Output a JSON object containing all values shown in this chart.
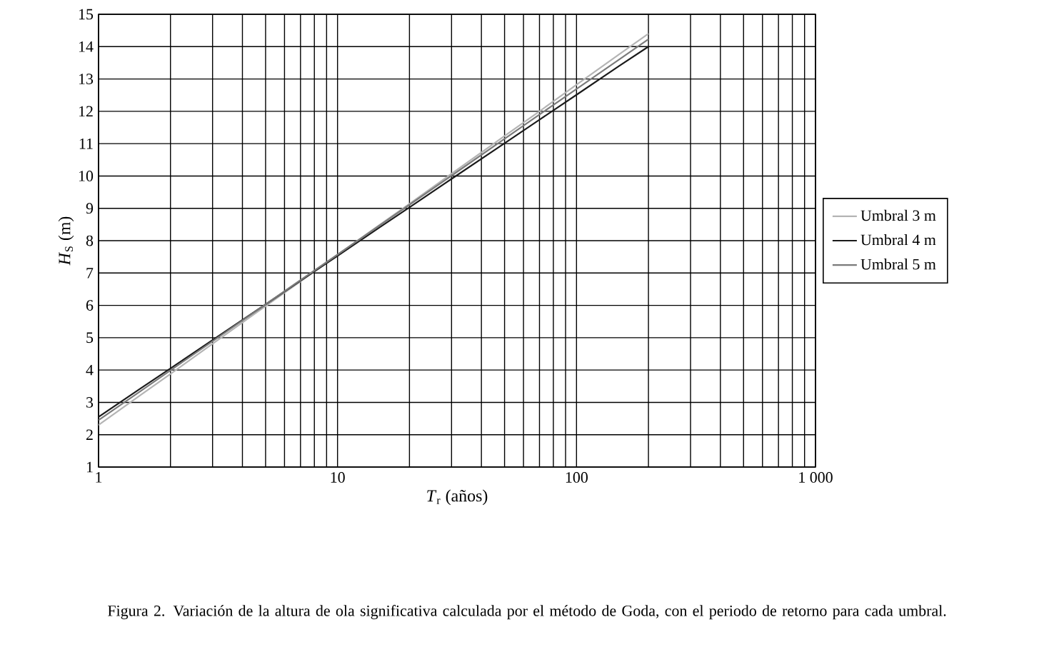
{
  "chart_data": {
    "type": "line",
    "xlabel": "*T*$_{r}$ (años)",
    "ylabel": "*H*$_{S}$ (m)",
    "x": [
      1,
      1.5,
      2,
      3,
      5,
      7,
      10,
      15,
      20,
      30,
      50,
      70,
      100,
      150,
      200
    ],
    "series": [
      {
        "name": "Umbral 3 m",
        "color": "#b4b4b4",
        "values": [
          2.3,
          3.23,
          3.88,
          4.81,
          5.98,
          6.74,
          7.56,
          8.49,
          9.14,
          10.07,
          11.24,
          12.0,
          12.82,
          13.75,
          14.4
        ]
      },
      {
        "name": "Umbral 4 m",
        "color": "#1a1a1a",
        "values": [
          2.55,
          3.43,
          4.05,
          4.93,
          6.03,
          6.76,
          7.53,
          8.41,
          9.03,
          9.91,
          11.01,
          11.74,
          12.51,
          13.39,
          14.0
        ]
      },
      {
        "name": "Umbral 5 m",
        "color": "#7a7a7a",
        "values": [
          2.45,
          3.35,
          3.99,
          4.89,
          6.03,
          6.78,
          7.57,
          8.47,
          9.11,
          10.01,
          11.15,
          11.9,
          12.69,
          13.59,
          14.23
        ]
      }
    ],
    "log": "x",
    "xlim": [
      1,
      1000
    ],
    "ylim": [
      1,
      15
    ],
    "xticks": [
      1,
      10,
      100,
      {
        "value": 1000,
        "label": "1 000"
      }
    ],
    "yticks": [
      1,
      2,
      3,
      4,
      5,
      6,
      7,
      8,
      9,
      10,
      11,
      12,
      13,
      14,
      15
    ],
    "grid": true,
    "legend": "right",
    "marker": "none",
    "line_style": "solid",
    "annotations": [
      "Figura 2. Variación de la altura de ola significativa calculada por el método de Goda, con el periodo de retorno para cada umbral."
    ]
  }
}
